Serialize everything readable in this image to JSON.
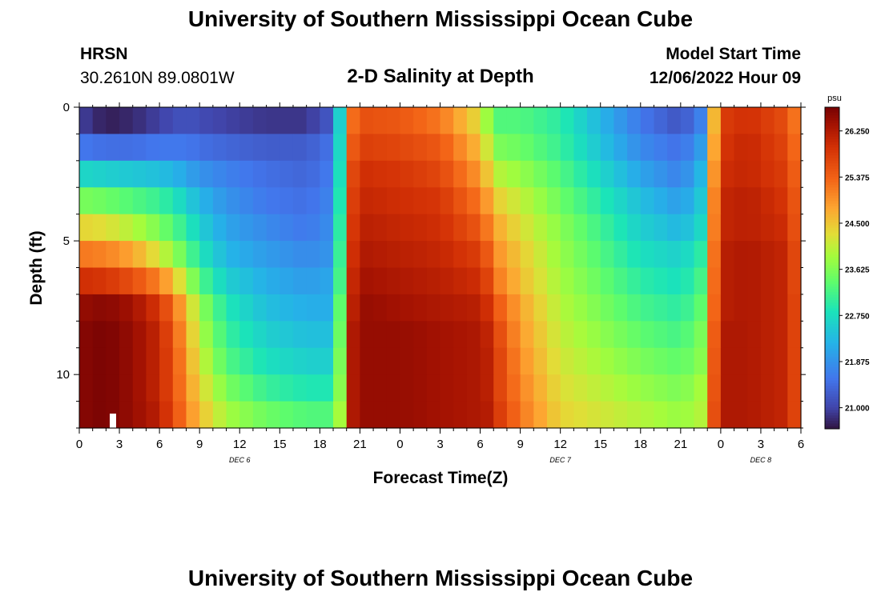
{
  "header": {
    "title": "University of Southern Mississippi Ocean Cube",
    "station": "HRSN",
    "coords": "30.2610N  89.0801W",
    "plot_title": "2-D Salinity at Depth",
    "model_label": "Model Start Time",
    "model_time": "12/06/2022 Hour 09"
  },
  "footer": {
    "title": "University of Southern Mississippi Ocean Cube"
  },
  "chart_data": {
    "type": "heatmap",
    "title": "2-D Salinity at Depth",
    "xlabel": "Forecast Time(Z)",
    "ylabel": "Depth (ft)",
    "colorbar_unit": "psu",
    "colorbar_ticks": [
      "26.250",
      "25.375",
      "24.500",
      "23.625",
      "22.750",
      "21.875",
      "21.000"
    ],
    "colorbar_range": [
      20.6,
      26.7
    ],
    "x_tick_labels": [
      "0",
      "3",
      "6",
      "9",
      "12",
      "15",
      "18",
      "21",
      "0",
      "3",
      "6",
      "9",
      "12",
      "15",
      "18",
      "21",
      "0",
      "3",
      "6"
    ],
    "x_range_hours": [
      0,
      54
    ],
    "day_labels": [
      {
        "label": "DEC 6",
        "hour": 12
      },
      {
        "label": "DEC 7",
        "hour": 36
      },
      {
        "label": "DEC 8",
        "hour": 51
      }
    ],
    "y_tick_labels": [
      "0",
      "5",
      "10"
    ],
    "y_ticks_ft": [
      0,
      5,
      10
    ],
    "y_range_ft": [
      0,
      12
    ],
    "depth_levels_ft": [
      0.5,
      1.5,
      2.5,
      3.5,
      4.5,
      5.5,
      6.5,
      7.5,
      8.5,
      9.5,
      10.5,
      11.5
    ],
    "time_anchors_hours": [
      0,
      2,
      4,
      6,
      7,
      8,
      9,
      11,
      14,
      17,
      18.5,
      19.5,
      20,
      20.5,
      21,
      24,
      27,
      30,
      31,
      31.5,
      33,
      36,
      42,
      45,
      46.5,
      47,
      48,
      50,
      53,
      54
    ],
    "salinity_rows": [
      [
        21.0,
        20.7,
        20.8,
        21.0,
        21.1,
        21.2,
        21.1,
        21.0,
        20.9,
        20.9,
        21.2,
        22.6,
        24.3,
        25.3,
        25.6,
        25.5,
        25.2,
        24.3,
        23.4,
        23.3,
        23.3,
        23.0,
        21.6,
        21.2,
        21.7,
        23.5,
        25.8,
        26.0,
        25.6,
        24.9
      ],
      [
        21.6,
        21.5,
        21.5,
        21.6,
        21.6,
        21.6,
        21.5,
        21.4,
        21.3,
        21.3,
        21.5,
        22.7,
        24.5,
        25.5,
        25.8,
        25.7,
        25.5,
        24.6,
        23.8,
        23.6,
        23.5,
        23.1,
        21.8,
        21.5,
        22.0,
        23.7,
        25.9,
        26.1,
        25.7,
        25.0
      ],
      [
        22.7,
        22.6,
        22.5,
        22.4,
        22.3,
        22.1,
        21.9,
        21.7,
        21.5,
        21.4,
        21.6,
        22.8,
        24.7,
        25.7,
        26.0,
        25.9,
        25.7,
        24.9,
        24.2,
        24.0,
        23.8,
        23.3,
        22.1,
        21.7,
        22.3,
        23.9,
        26.0,
        26.1,
        25.8,
        25.1
      ],
      [
        23.6,
        23.5,
        23.3,
        23.1,
        22.9,
        22.6,
        22.3,
        21.9,
        21.6,
        21.5,
        21.7,
        22.9,
        24.8,
        25.8,
        26.1,
        26.0,
        25.9,
        25.2,
        24.6,
        24.4,
        24.1,
        23.5,
        22.4,
        22.0,
        22.5,
        24.1,
        26.1,
        26.2,
        25.9,
        25.2
      ],
      [
        24.4,
        24.3,
        24.0,
        23.6,
        23.3,
        23.0,
        22.6,
        22.1,
        21.8,
        21.6,
        21.8,
        23.0,
        24.9,
        25.9,
        26.2,
        26.1,
        26.0,
        25.5,
        24.9,
        24.7,
        24.3,
        23.7,
        22.6,
        22.3,
        22.7,
        24.2,
        26.1,
        26.2,
        26.0,
        25.2
      ],
      [
        25.2,
        25.1,
        24.8,
        24.2,
        23.8,
        23.4,
        22.9,
        22.3,
        22.0,
        21.8,
        21.9,
        23.1,
        25.0,
        26.0,
        26.3,
        26.2,
        26.1,
        25.8,
        25.2,
        24.9,
        24.5,
        23.8,
        22.8,
        22.6,
        23.0,
        24.3,
        26.2,
        26.3,
        26.1,
        25.3
      ],
      [
        26.0,
        25.9,
        25.6,
        25.1,
        24.6,
        24.0,
        23.3,
        22.6,
        22.2,
        22.0,
        22.1,
        23.2,
        25.1,
        26.1,
        26.4,
        26.3,
        26.2,
        26.0,
        25.5,
        25.1,
        24.6,
        23.9,
        23.0,
        22.8,
        23.2,
        24.4,
        26.2,
        26.3,
        26.1,
        25.3
      ],
      [
        26.5,
        26.6,
        26.4,
        25.9,
        25.3,
        24.6,
        23.8,
        22.9,
        22.4,
        22.2,
        22.2,
        23.4,
        25.2,
        26.2,
        26.5,
        26.4,
        26.3,
        26.2,
        25.8,
        25.4,
        24.8,
        24.0,
        23.2,
        23.0,
        23.4,
        24.5,
        26.2,
        26.3,
        26.1,
        25.4
      ],
      [
        26.6,
        26.7,
        26.5,
        26.1,
        25.5,
        24.8,
        24.0,
        23.1,
        22.6,
        22.4,
        22.4,
        23.5,
        25.3,
        26.3,
        26.5,
        26.5,
        26.4,
        26.3,
        26.0,
        25.6,
        24.9,
        24.1,
        23.4,
        23.2,
        23.6,
        24.6,
        26.3,
        26.3,
        26.1,
        25.4
      ],
      [
        26.6,
        26.7,
        26.5,
        26.1,
        25.6,
        24.9,
        24.2,
        23.3,
        22.8,
        22.6,
        22.6,
        23.6,
        25.3,
        26.3,
        26.5,
        26.5,
        26.4,
        26.3,
        26.1,
        25.7,
        25.0,
        24.2,
        23.6,
        23.4,
        23.7,
        24.7,
        26.3,
        26.3,
        26.1,
        25.4
      ],
      [
        26.6,
        26.7,
        26.5,
        26.1,
        25.6,
        25.0,
        24.4,
        23.6,
        23.1,
        22.9,
        22.9,
        23.7,
        25.4,
        26.3,
        26.5,
        26.5,
        26.4,
        26.3,
        26.1,
        25.7,
        25.1,
        24.3,
        23.8,
        23.6,
        23.9,
        24.8,
        26.3,
        26.3,
        26.1,
        25.4
      ],
      [
        26.6,
        26.7,
        26.5,
        26.2,
        25.7,
        25.1,
        24.6,
        23.9,
        23.5,
        23.3,
        23.3,
        23.9,
        25.4,
        26.3,
        26.5,
        26.5,
        26.4,
        26.3,
        26.2,
        25.8,
        25.2,
        24.4,
        24.0,
        23.8,
        24.0,
        24.9,
        26.3,
        26.3,
        26.1,
        25.4
      ]
    ]
  }
}
